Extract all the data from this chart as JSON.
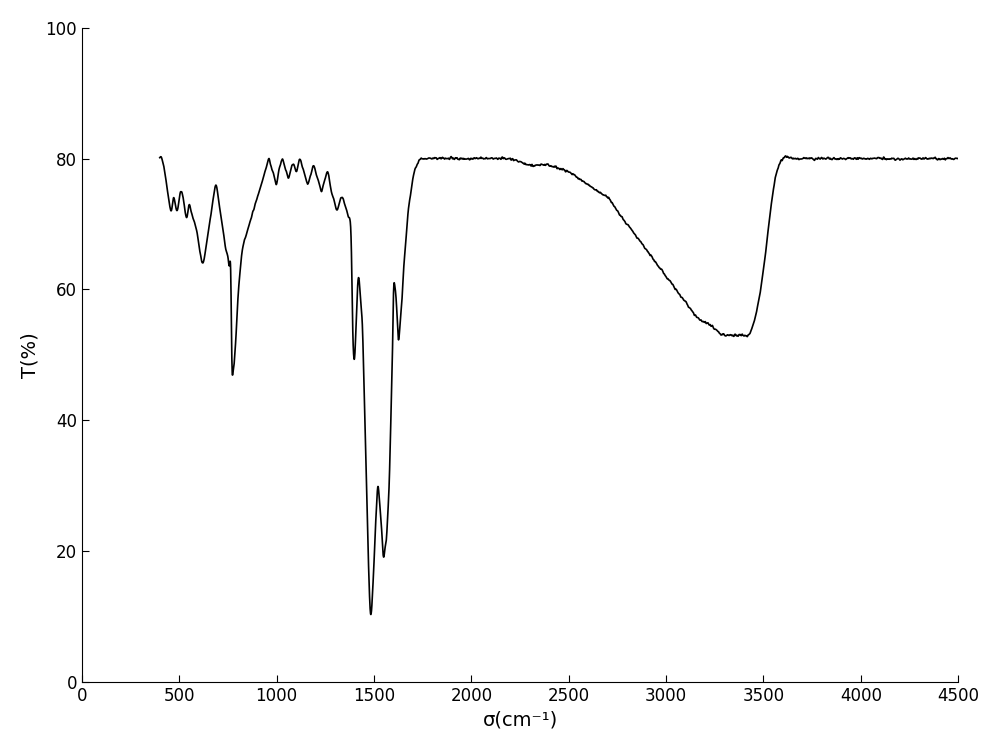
{
  "title": "",
  "xlabel": "σ(cm⁻¹)",
  "ylabel": "T(%)",
  "xlim": [
    0,
    4500
  ],
  "ylim": [
    0,
    100
  ],
  "xticks": [
    0,
    500,
    1000,
    1500,
    2000,
    2500,
    3000,
    3500,
    4000,
    4500
  ],
  "yticks": [
    0,
    20,
    40,
    60,
    80,
    100
  ],
  "line_color": "#000000",
  "line_width": 1.2,
  "bg_color": "#ffffff",
  "figsize": [
    10.0,
    7.5
  ],
  "dpi": 100
}
